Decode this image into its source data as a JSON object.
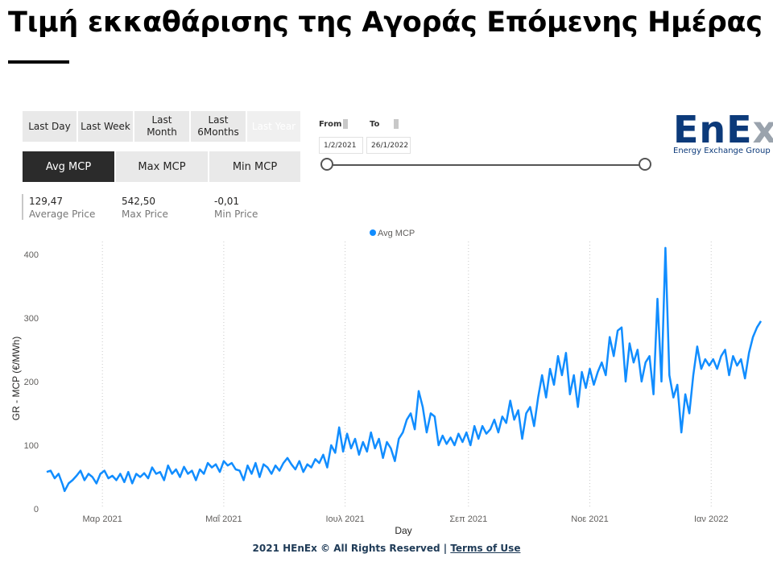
{
  "page": {
    "title": "Τιμή εκκαθάρισης της Αγοράς Επόμενης Ημέρας",
    "footer_text": "2021 HEnEx © All Rights Reserved |",
    "footer_link": "Terms of Use"
  },
  "period_buttons": [
    {
      "label": "Last Day"
    },
    {
      "label": "Last Week"
    },
    {
      "label": "Last Month"
    },
    {
      "label": "Last 6Months"
    },
    {
      "label": "Last Year"
    }
  ],
  "metric_buttons": [
    {
      "label": "Avg MCP",
      "active": true
    },
    {
      "label": "Max MCP",
      "active": false
    },
    {
      "label": "Min MCP",
      "active": false
    }
  ],
  "kpis": [
    {
      "value": "129,47",
      "label": "Average Price"
    },
    {
      "value": "542,50",
      "label": "Max Price"
    },
    {
      "value": "-0,01",
      "label": "Min Price"
    }
  ],
  "date_filter": {
    "from_label": "From",
    "to_label": "To",
    "from_value": "1/2/2021",
    "to_value": "26/1/2022"
  },
  "logo": {
    "text_main": "EnE",
    "text_x": "x",
    "subtitle": "Energy Exchange Group"
  },
  "colors": {
    "series": "#118dff",
    "active_button": "#2b2b2b",
    "logo_blue": "#0c3a7a",
    "logo_grey": "#9aa3ad"
  },
  "chart_data": {
    "type": "line",
    "legend_position": "top-center",
    "xlabel": "Day",
    "ylabel": "GR - MCP (€/MWh)",
    "x_start": "2021-02-01",
    "x_end": "2022-01-26",
    "ylim": [
      0,
      420
    ],
    "yticks": [
      0,
      100,
      200,
      300,
      400
    ],
    "xticks": [
      {
        "date": "2021-03-01",
        "label": "Μαρ 2021"
      },
      {
        "date": "2021-05-01",
        "label": "Μαΐ 2021"
      },
      {
        "date": "2021-07-01",
        "label": "Ιουλ 2021"
      },
      {
        "date": "2021-09-01",
        "label": "Σεπ 2021"
      },
      {
        "date": "2021-11-01",
        "label": "Νοε 2021"
      },
      {
        "date": "2022-01-01",
        "label": "Ιαν 2022"
      }
    ],
    "grid": "vertical-dotted",
    "series": [
      {
        "name": "Avg MCP",
        "points": [
          [
            "2021-02-01",
            58
          ],
          [
            "2021-02-03",
            60
          ],
          [
            "2021-02-05",
            48
          ],
          [
            "2021-02-07",
            55
          ],
          [
            "2021-02-09",
            38
          ],
          [
            "2021-02-10",
            28
          ],
          [
            "2021-02-12",
            40
          ],
          [
            "2021-02-14",
            45
          ],
          [
            "2021-02-16",
            52
          ],
          [
            "2021-02-18",
            60
          ],
          [
            "2021-02-20",
            45
          ],
          [
            "2021-02-22",
            55
          ],
          [
            "2021-02-24",
            50
          ],
          [
            "2021-02-26",
            40
          ],
          [
            "2021-02-28",
            55
          ],
          [
            "2021-03-02",
            60
          ],
          [
            "2021-03-04",
            48
          ],
          [
            "2021-03-06",
            52
          ],
          [
            "2021-03-08",
            45
          ],
          [
            "2021-03-10",
            55
          ],
          [
            "2021-03-12",
            42
          ],
          [
            "2021-03-14",
            58
          ],
          [
            "2021-03-16",
            40
          ],
          [
            "2021-03-18",
            55
          ],
          [
            "2021-03-20",
            50
          ],
          [
            "2021-03-22",
            56
          ],
          [
            "2021-03-24",
            48
          ],
          [
            "2021-03-26",
            65
          ],
          [
            "2021-03-28",
            55
          ],
          [
            "2021-03-30",
            58
          ],
          [
            "2021-04-01",
            45
          ],
          [
            "2021-04-03",
            68
          ],
          [
            "2021-04-05",
            55
          ],
          [
            "2021-04-07",
            62
          ],
          [
            "2021-04-09",
            50
          ],
          [
            "2021-04-11",
            66
          ],
          [
            "2021-04-13",
            55
          ],
          [
            "2021-04-15",
            60
          ],
          [
            "2021-04-17",
            45
          ],
          [
            "2021-04-19",
            62
          ],
          [
            "2021-04-21",
            55
          ],
          [
            "2021-04-23",
            72
          ],
          [
            "2021-04-25",
            65
          ],
          [
            "2021-04-27",
            70
          ],
          [
            "2021-04-29",
            58
          ],
          [
            "2021-05-01",
            75
          ],
          [
            "2021-05-03",
            68
          ],
          [
            "2021-05-05",
            72
          ],
          [
            "2021-05-07",
            62
          ],
          [
            "2021-05-09",
            60
          ],
          [
            "2021-05-11",
            45
          ],
          [
            "2021-05-13",
            68
          ],
          [
            "2021-05-15",
            55
          ],
          [
            "2021-05-17",
            72
          ],
          [
            "2021-05-19",
            50
          ],
          [
            "2021-05-21",
            70
          ],
          [
            "2021-05-23",
            65
          ],
          [
            "2021-05-25",
            55
          ],
          [
            "2021-05-27",
            68
          ],
          [
            "2021-05-29",
            60
          ],
          [
            "2021-05-31",
            72
          ],
          [
            "2021-06-02",
            80
          ],
          [
            "2021-06-04",
            70
          ],
          [
            "2021-06-06",
            62
          ],
          [
            "2021-06-08",
            75
          ],
          [
            "2021-06-10",
            58
          ],
          [
            "2021-06-12",
            70
          ],
          [
            "2021-06-14",
            65
          ],
          [
            "2021-06-16",
            78
          ],
          [
            "2021-06-18",
            72
          ],
          [
            "2021-06-20",
            85
          ],
          [
            "2021-06-22",
            65
          ],
          [
            "2021-06-24",
            100
          ],
          [
            "2021-06-26",
            88
          ],
          [
            "2021-06-28",
            128
          ],
          [
            "2021-06-30",
            90
          ],
          [
            "2021-07-02",
            118
          ],
          [
            "2021-07-04",
            95
          ],
          [
            "2021-07-06",
            110
          ],
          [
            "2021-07-08",
            85
          ],
          [
            "2021-07-10",
            105
          ],
          [
            "2021-07-12",
            90
          ],
          [
            "2021-07-14",
            120
          ],
          [
            "2021-07-16",
            95
          ],
          [
            "2021-07-18",
            110
          ],
          [
            "2021-07-20",
            80
          ],
          [
            "2021-07-22",
            105
          ],
          [
            "2021-07-24",
            95
          ],
          [
            "2021-07-26",
            75
          ],
          [
            "2021-07-28",
            110
          ],
          [
            "2021-07-30",
            120
          ],
          [
            "2021-08-01",
            140
          ],
          [
            "2021-08-03",
            150
          ],
          [
            "2021-08-05",
            125
          ],
          [
            "2021-08-07",
            185
          ],
          [
            "2021-08-09",
            160
          ],
          [
            "2021-08-11",
            120
          ],
          [
            "2021-08-13",
            150
          ],
          [
            "2021-08-15",
            145
          ],
          [
            "2021-08-17",
            100
          ],
          [
            "2021-08-19",
            115
          ],
          [
            "2021-08-21",
            102
          ],
          [
            "2021-08-23",
            112
          ],
          [
            "2021-08-25",
            100
          ],
          [
            "2021-08-27",
            118
          ],
          [
            "2021-08-29",
            105
          ],
          [
            "2021-08-31",
            120
          ],
          [
            "2021-09-02",
            100
          ],
          [
            "2021-09-04",
            130
          ],
          [
            "2021-09-06",
            110
          ],
          [
            "2021-09-08",
            130
          ],
          [
            "2021-09-10",
            118
          ],
          [
            "2021-09-12",
            125
          ],
          [
            "2021-09-14",
            140
          ],
          [
            "2021-09-16",
            120
          ],
          [
            "2021-09-18",
            145
          ],
          [
            "2021-09-20",
            135
          ],
          [
            "2021-09-22",
            170
          ],
          [
            "2021-09-24",
            140
          ],
          [
            "2021-09-26",
            155
          ],
          [
            "2021-09-28",
            110
          ],
          [
            "2021-09-30",
            150
          ],
          [
            "2021-10-02",
            160
          ],
          [
            "2021-10-04",
            130
          ],
          [
            "2021-10-06",
            175
          ],
          [
            "2021-10-08",
            210
          ],
          [
            "2021-10-10",
            175
          ],
          [
            "2021-10-12",
            220
          ],
          [
            "2021-10-14",
            195
          ],
          [
            "2021-10-16",
            240
          ],
          [
            "2021-10-18",
            210
          ],
          [
            "2021-10-20",
            245
          ],
          [
            "2021-10-22",
            180
          ],
          [
            "2021-10-24",
            210
          ],
          [
            "2021-10-26",
            160
          ],
          [
            "2021-10-28",
            215
          ],
          [
            "2021-10-30",
            190
          ],
          [
            "2021-11-01",
            220
          ],
          [
            "2021-11-03",
            195
          ],
          [
            "2021-11-05",
            215
          ],
          [
            "2021-11-07",
            230
          ],
          [
            "2021-11-09",
            210
          ],
          [
            "2021-11-11",
            270
          ],
          [
            "2021-11-13",
            240
          ],
          [
            "2021-11-15",
            280
          ],
          [
            "2021-11-17",
            285
          ],
          [
            "2021-11-19",
            200
          ],
          [
            "2021-11-21",
            260
          ],
          [
            "2021-11-23",
            230
          ],
          [
            "2021-11-25",
            250
          ],
          [
            "2021-11-27",
            200
          ],
          [
            "2021-11-29",
            230
          ],
          [
            "2021-12-01",
            240
          ],
          [
            "2021-12-03",
            180
          ],
          [
            "2021-12-05",
            330
          ],
          [
            "2021-12-07",
            200
          ],
          [
            "2021-12-09",
            410
          ],
          [
            "2021-12-11",
            210
          ],
          [
            "2021-12-13",
            175
          ],
          [
            "2021-12-15",
            195
          ],
          [
            "2021-12-17",
            120
          ],
          [
            "2021-12-19",
            180
          ],
          [
            "2021-12-21",
            150
          ],
          [
            "2021-12-23",
            210
          ],
          [
            "2021-12-25",
            255
          ],
          [
            "2021-12-27",
            220
          ],
          [
            "2021-12-29",
            235
          ],
          [
            "2021-12-31",
            225
          ],
          [
            "2022-01-02",
            235
          ],
          [
            "2022-01-04",
            220
          ],
          [
            "2022-01-06",
            240
          ],
          [
            "2022-01-08",
            250
          ],
          [
            "2022-01-10",
            210
          ],
          [
            "2022-01-12",
            240
          ],
          [
            "2022-01-14",
            225
          ],
          [
            "2022-01-16",
            235
          ],
          [
            "2022-01-18",
            205
          ],
          [
            "2022-01-20",
            245
          ],
          [
            "2022-01-22",
            270
          ],
          [
            "2022-01-24",
            285
          ],
          [
            "2022-01-26",
            295
          ]
        ]
      }
    ]
  }
}
